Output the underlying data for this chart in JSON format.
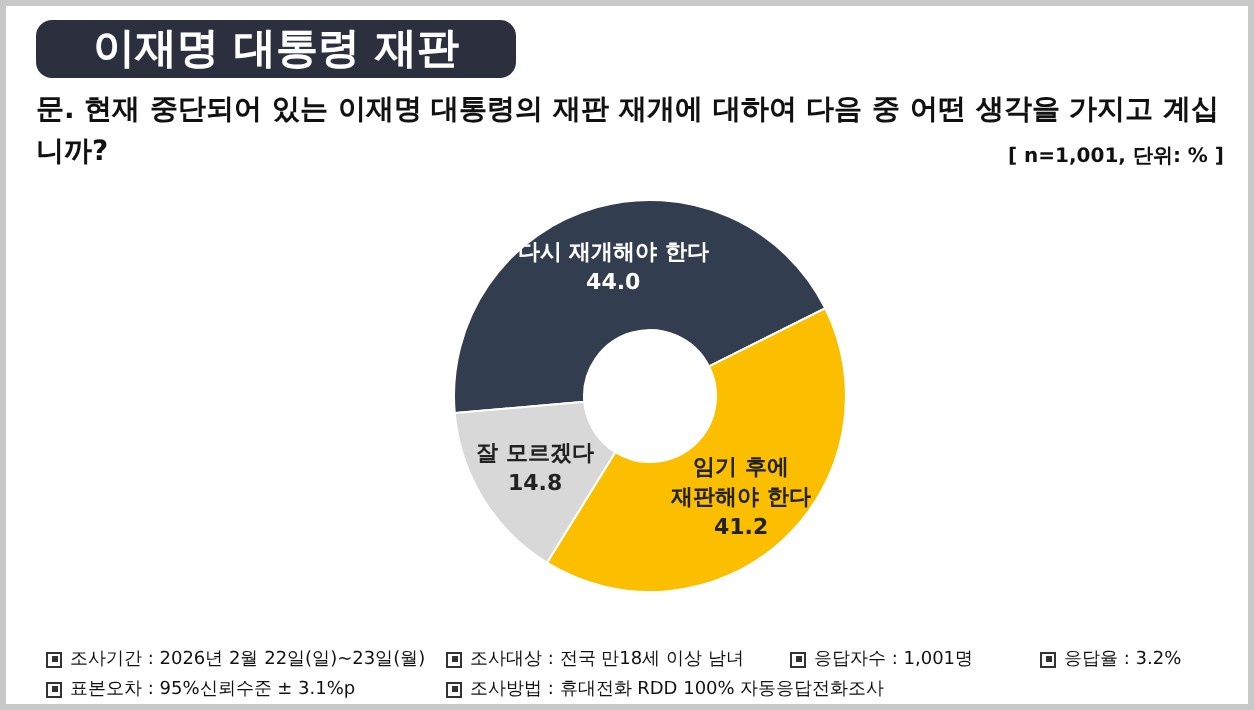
{
  "chart_data": {
    "type": "donut",
    "title": "이재명 대통령 재판",
    "subtitle": "문. 현재 중단되어 있는 이재명 대통령의 재판 재개에 대하여 다음 중 어떤 생각을 가지고 계십니까?",
    "categories": [
      "다시 재개해야 한다",
      "임기 후에\n재판해야 한다",
      "잘 모르겠다"
    ],
    "values": [
      44.0,
      41.2,
      14.8
    ],
    "value_labels": [
      "44.0",
      "41.2",
      "14.8"
    ],
    "colors": [
      "#333d50",
      "#fbbf00",
      "#d9d8d8"
    ],
    "annotations": [
      "[ n=1,001, 단위: % ]",
      "조사기간 : 2026년 2월 22일(일)~23일(월)",
      "조사대상 : 전국 만18세 이상 남녀",
      "응답자수 : 1,001명",
      "응답율 : 3.2%",
      "표본오차 : 95%신뢰수준 ± 3.1%p",
      "조사방법 : 휴대전화 RDD 100% 자동응답전화조사"
    ]
  }
}
